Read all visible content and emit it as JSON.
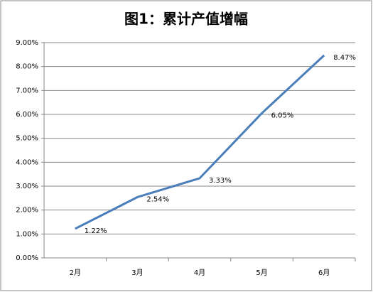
{
  "chart_data": {
    "type": "line",
    "title": "图1：累计产值增幅",
    "categories": [
      "2月",
      "3月",
      "4月",
      "5月",
      "6月"
    ],
    "values": [
      1.22,
      2.54,
      3.33,
      6.05,
      8.47
    ],
    "value_labels": [
      "1.22%",
      "2.54%",
      "3.33%",
      "6.05%",
      "8.47%"
    ],
    "color": "#4a7ebb",
    "ylim": [
      0,
      9
    ],
    "yticks": [
      {
        "value": 0,
        "label": "0.00%"
      },
      {
        "value": 1,
        "label": "1.00%"
      },
      {
        "value": 2,
        "label": "2.00%"
      },
      {
        "value": 3,
        "label": "3.00%"
      },
      {
        "value": 4,
        "label": "4.00%"
      },
      {
        "value": 5,
        "label": "5.00%"
      },
      {
        "value": 6,
        "label": "6.00%"
      },
      {
        "value": 7,
        "label": "7.00%"
      },
      {
        "value": 8,
        "label": "8.00%"
      },
      {
        "value": 9,
        "label": "9.00%"
      }
    ],
    "grid": true
  }
}
